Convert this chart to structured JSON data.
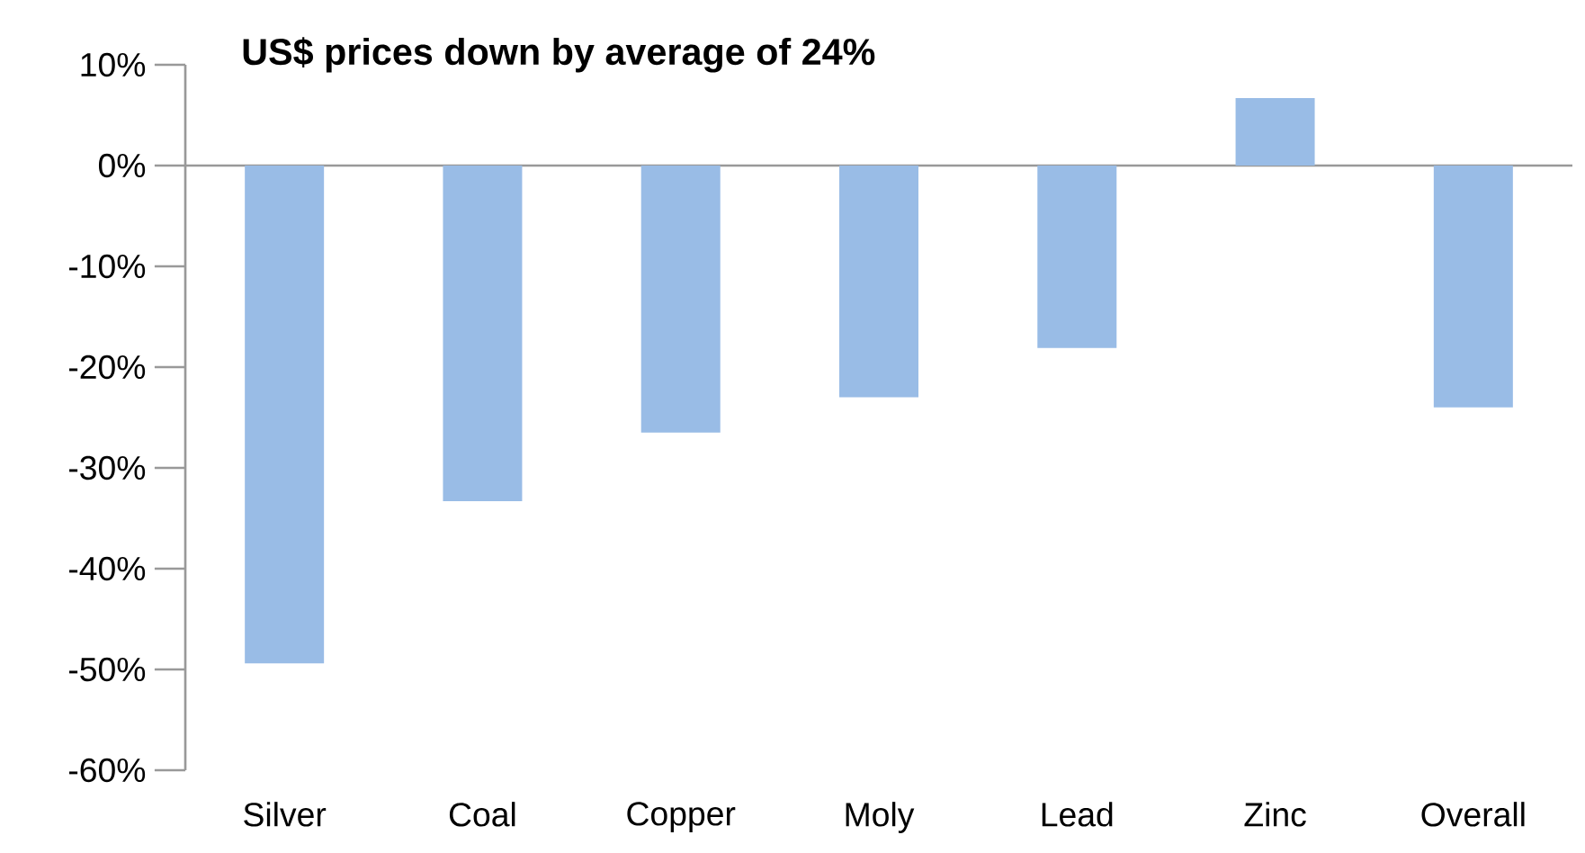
{
  "chart_data": {
    "type": "bar",
    "title": "US$ prices down by average of 24%",
    "categories": [
      "Silver",
      "Coal",
      "Copper",
      "Moly",
      "Lead",
      "Zinc",
      "Overall"
    ],
    "values": [
      -49.4,
      -33.3,
      -26.5,
      -23.0,
      -18.1,
      6.7,
      -24.0
    ],
    "color": "#99bce6",
    "ylim": [
      -60,
      10
    ],
    "yticks": [
      {
        "value": 10,
        "label": "10%"
      },
      {
        "value": 0,
        "label": "0%"
      },
      {
        "value": -10,
        "label": "-10%"
      },
      {
        "value": -20,
        "label": "-20%"
      },
      {
        "value": -30,
        "label": "-30%"
      },
      {
        "value": -40,
        "label": "-40%"
      },
      {
        "value": -50,
        "label": "-50%"
      },
      {
        "value": -60,
        "label": "-60%"
      }
    ]
  }
}
